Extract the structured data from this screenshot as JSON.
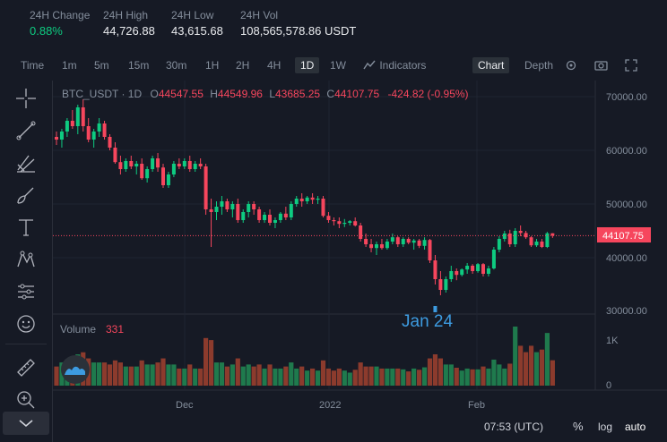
{
  "stats": [
    {
      "label": "24H Change",
      "value": "0.88%",
      "up": true
    },
    {
      "label": "24H High",
      "value": "44,726.88"
    },
    {
      "label": "24H Low",
      "value": "43,615.68"
    },
    {
      "label": "24H Vol",
      "value": "108,565,578.86 USDT"
    }
  ],
  "toolbar": {
    "time": "Time",
    "m1": "1m",
    "m5": "5m",
    "m15": "15m",
    "m30": "30m",
    "h1": "1H",
    "h2": "2H",
    "h4": "4H",
    "d1": "1D",
    "w1": "1W",
    "indicators": "Indicators",
    "chart": "Chart",
    "depth": "Depth"
  },
  "legend": {
    "symbol": "BTC_USDT · 1D",
    "o_label": "O",
    "o": "44547.55",
    "h_label": "H",
    "h": "44549.96",
    "l_label": "L",
    "l": "43685.25",
    "c_label": "C",
    "c": "44107.75",
    "change": "-424.82 (-0.95%)"
  },
  "price_axis": [
    "70000.00",
    "60000.00",
    "50000.00",
    "40000.00",
    "30000.00"
  ],
  "last_price": "44107.75",
  "crosshair_label": "Jan 24",
  "volume": {
    "label": "Volume",
    "value": "331",
    "axis": [
      "1K",
      "0"
    ]
  },
  "time_axis": [
    "Dec",
    "2022",
    "Feb"
  ],
  "footer": {
    "clock": "07:53 (UTC)",
    "percent": "%",
    "log": "log",
    "auto": "auto"
  },
  "colors": {
    "up": "#0ecb81",
    "down": "#f6465d",
    "accent": "#f0b90b"
  },
  "icons": [
    "crosshair-icon",
    "trend-line-icon",
    "pitchfork-icon",
    "brush-icon",
    "text-icon",
    "pattern-icon",
    "measure-icon",
    "emoji-icon",
    "ruler-icon",
    "zoom-in-icon",
    "settings-icon",
    "camera-icon",
    "fullscreen-icon",
    "indicators-icon"
  ],
  "chart_data": {
    "type": "candlestick",
    "ylim": [
      28000,
      74000
    ],
    "candles": [
      [
        62500,
        63500,
        61000,
        62000
      ],
      [
        62000,
        64000,
        60500,
        63500
      ],
      [
        63500,
        66000,
        62500,
        65500
      ],
      [
        65500,
        67500,
        64000,
        64500
      ],
      [
        64500,
        68500,
        63000,
        68000
      ],
      [
        68000,
        69500,
        63500,
        64500
      ],
      [
        64500,
        66000,
        61500,
        62000
      ],
      [
        62000,
        64000,
        60500,
        63500
      ],
      [
        63500,
        66000,
        62500,
        65000
      ],
      [
        65000,
        65500,
        62000,
        62500
      ],
      [
        62500,
        63000,
        60000,
        60500
      ],
      [
        60500,
        61500,
        57500,
        57800
      ],
      [
        57800,
        59000,
        55500,
        56500
      ],
      [
        56500,
        58500,
        56000,
        58000
      ],
      [
        58000,
        59000,
        56500,
        57000
      ],
      [
        57000,
        58000,
        55500,
        57500
      ],
      [
        57500,
        58500,
        54500,
        54800
      ],
      [
        54800,
        57000,
        54000,
        56500
      ],
      [
        56500,
        59000,
        56000,
        58500
      ],
      [
        58500,
        59500,
        56000,
        56800
      ],
      [
        56800,
        57500,
        53000,
        53500
      ],
      [
        53500,
        56000,
        53000,
        55500
      ],
      [
        55500,
        58000,
        55000,
        57500
      ],
      [
        57500,
        58500,
        56500,
        57000
      ],
      [
        57000,
        58500,
        56500,
        58000
      ],
      [
        58000,
        59000,
        56000,
        56500
      ],
      [
        56500,
        58000,
        56000,
        57500
      ],
      [
        57500,
        58500,
        56500,
        57000
      ],
      [
        57000,
        57500,
        48000,
        49000
      ],
      [
        49000,
        51000,
        42000,
        48500
      ],
      [
        48500,
        50500,
        47000,
        49500
      ],
      [
        49500,
        51500,
        48000,
        50500
      ],
      [
        50500,
        51000,
        48500,
        49000
      ],
      [
        49000,
        50500,
        47500,
        50000
      ],
      [
        50000,
        51000,
        46500,
        47000
      ],
      [
        47000,
        49000,
        46500,
        48500
      ],
      [
        48500,
        50500,
        47500,
        50000
      ],
      [
        50000,
        50500,
        48000,
        49000
      ],
      [
        49000,
        49500,
        46500,
        47000
      ],
      [
        47000,
        48500,
        46500,
        48000
      ],
      [
        48000,
        49000,
        46000,
        46500
      ],
      [
        46500,
        47500,
        45500,
        47000
      ],
      [
        47000,
        48500,
        46500,
        48200
      ],
      [
        48200,
        49500,
        47000,
        47500
      ],
      [
        47500,
        50500,
        47000,
        50000
      ],
      [
        50000,
        51500,
        49500,
        51000
      ],
      [
        51000,
        52000,
        49500,
        50500
      ],
      [
        50500,
        51500,
        50000,
        51200
      ],
      [
        51200,
        52000,
        50000,
        50800
      ],
      [
        50800,
        51500,
        50000,
        51000
      ],
      [
        51000,
        51500,
        47500,
        47800
      ],
      [
        47800,
        48500,
        46500,
        47000
      ],
      [
        47000,
        47500,
        46000,
        46800
      ],
      [
        46800,
        47500,
        45500,
        46300
      ],
      [
        46300,
        47200,
        45700,
        46500
      ],
      [
        46500,
        47000,
        46000,
        46800
      ],
      [
        46800,
        47500,
        45800,
        46000
      ],
      [
        46000,
        46500,
        43000,
        43500
      ],
      [
        43500,
        44500,
        42000,
        42500
      ],
      [
        42500,
        43500,
        41000,
        41800
      ],
      [
        41800,
        43000,
        40500,
        42500
      ],
      [
        42500,
        43500,
        41500,
        41800
      ],
      [
        41800,
        43500,
        41500,
        43000
      ],
      [
        43000,
        44500,
        42500,
        43800
      ],
      [
        43800,
        44000,
        42000,
        42500
      ],
      [
        42500,
        43800,
        42000,
        43500
      ],
      [
        43500,
        43800,
        42500,
        42800
      ],
      [
        42800,
        43500,
        41500,
        43200
      ],
      [
        43200,
        43500,
        41800,
        42200
      ],
      [
        42200,
        43800,
        41500,
        43300
      ],
      [
        43300,
        43500,
        39000,
        39500
      ],
      [
        39500,
        40500,
        35000,
        36000
      ],
      [
        36000,
        37500,
        33000,
        34000
      ],
      [
        34000,
        36500,
        33500,
        36000
      ],
      [
        36000,
        38500,
        35500,
        37500
      ],
      [
        37500,
        38000,
        35800,
        36800
      ],
      [
        36800,
        38000,
        36500,
        37800
      ],
      [
        37800,
        39000,
        37000,
        38500
      ],
      [
        38500,
        38800,
        37000,
        37500
      ],
      [
        37500,
        39000,
        37200,
        38800
      ],
      [
        38800,
        39000,
        36500,
        37000
      ],
      [
        37000,
        38500,
        36500,
        38000
      ],
      [
        38000,
        42000,
        37800,
        41500
      ],
      [
        41500,
        44000,
        41000,
        43500
      ],
      [
        43500,
        45000,
        43000,
        44500
      ],
      [
        44500,
        45200,
        42000,
        42500
      ],
      [
        42500,
        45500,
        42000,
        45000
      ],
      [
        45000,
        46000,
        44000,
        44600
      ],
      [
        44600,
        45000,
        43500,
        43800
      ],
      [
        43800,
        44000,
        42000,
        42300
      ],
      [
        42300,
        43500,
        42000,
        43000
      ],
      [
        43000,
        43500,
        41800,
        42000
      ],
      [
        42000,
        44800,
        41800,
        44547
      ],
      [
        44547,
        44550,
        43685,
        44108
      ]
    ]
  }
}
